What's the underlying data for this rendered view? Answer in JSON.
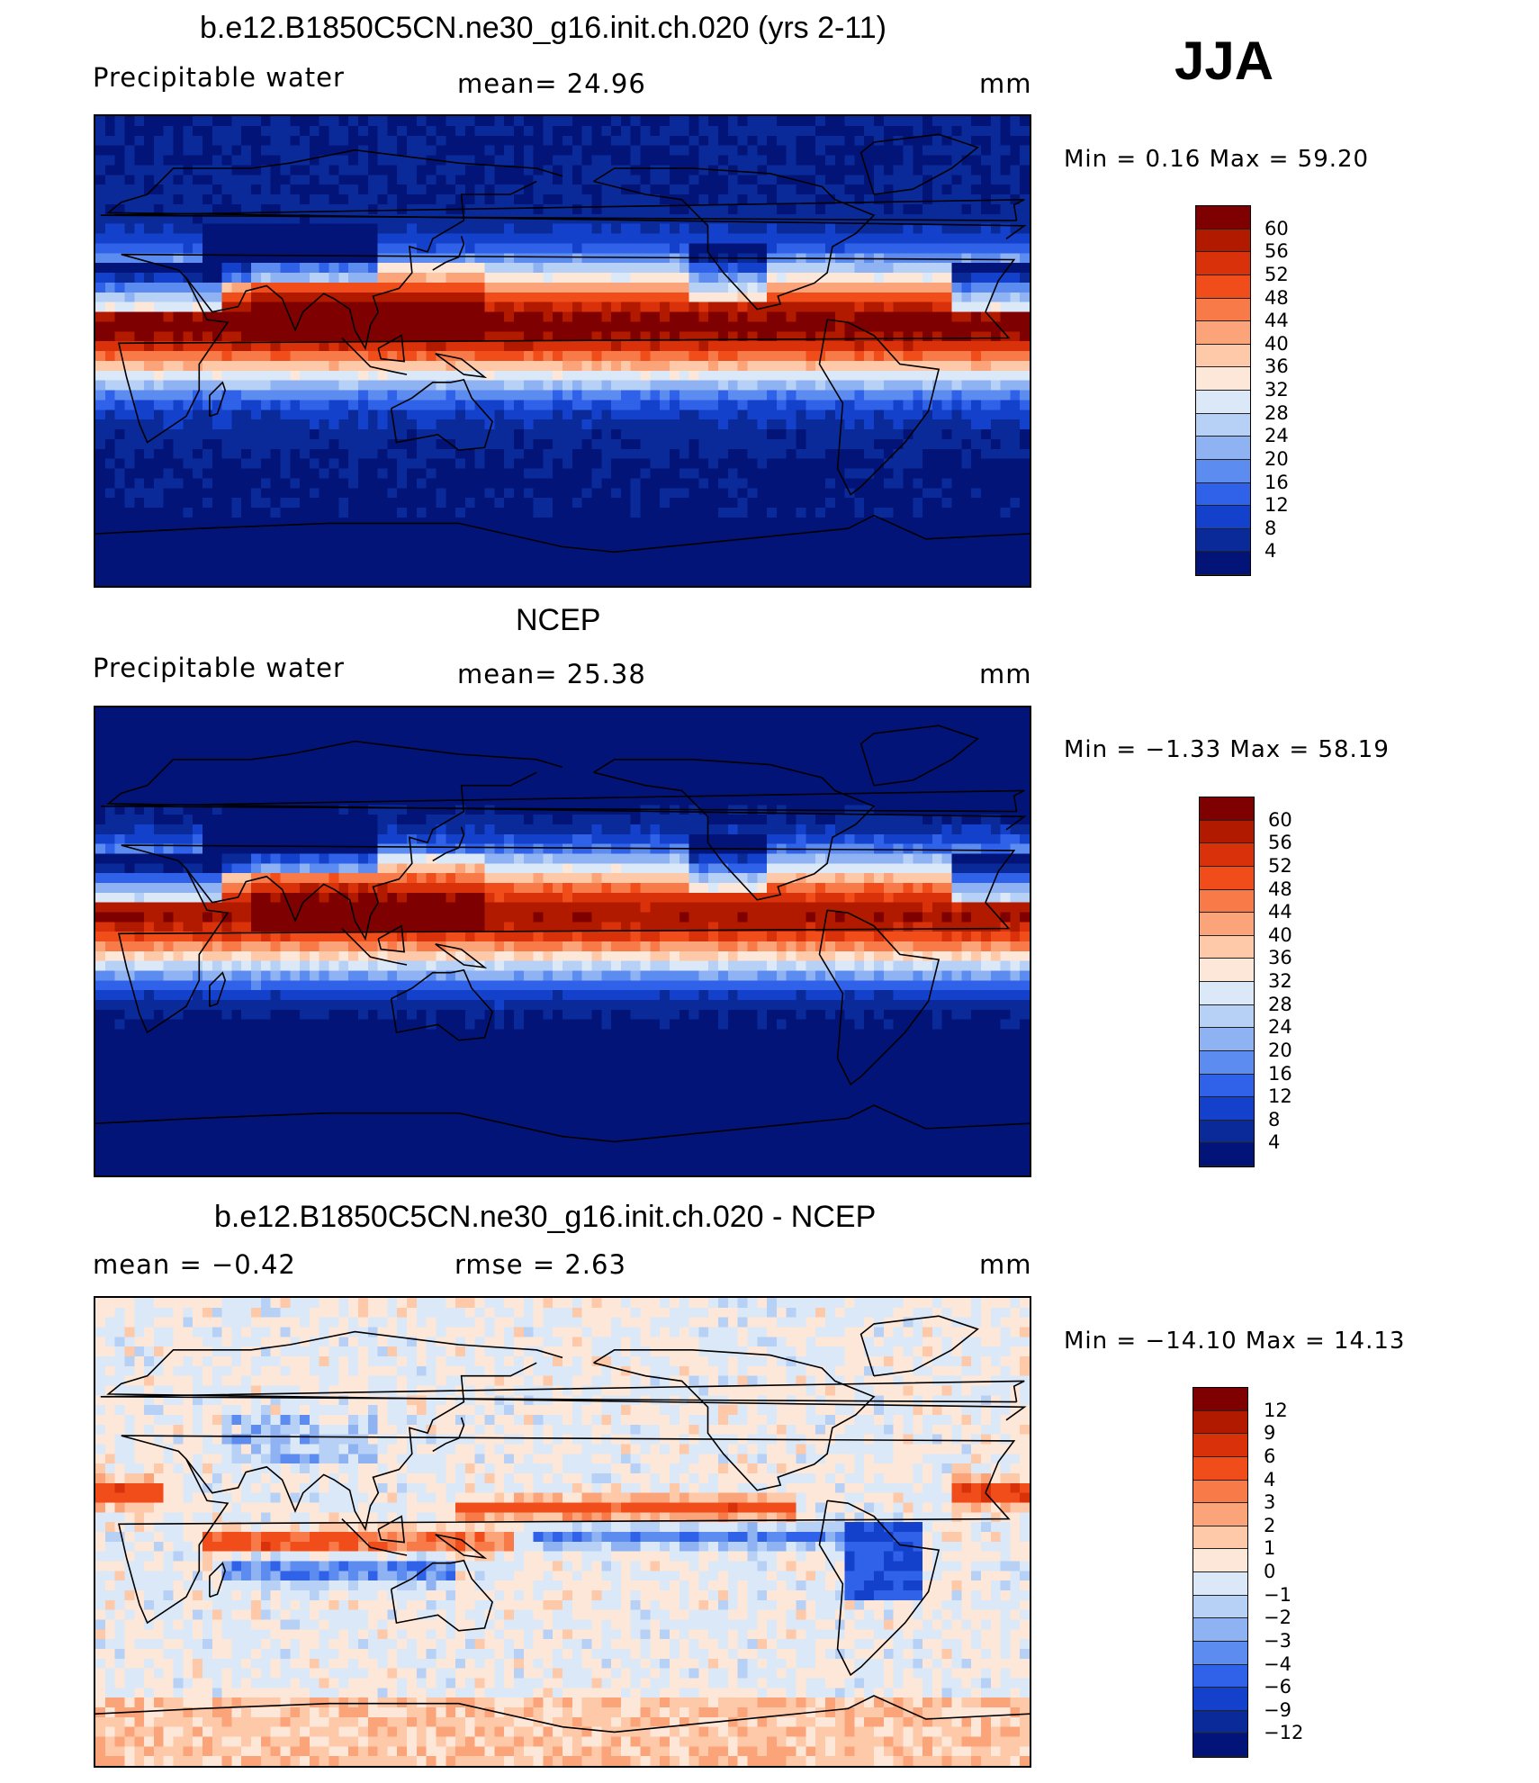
{
  "season": "JJA",
  "panels": [
    {
      "title": "b.e12.B1850C5CN.ne30_g16.init.ch.020 (yrs 2-11)",
      "left_label": "Precipitable  water",
      "center_label": "mean=   24.96",
      "units": "mm",
      "minmax": "Min  =     0.16  Max  =    59.20",
      "field": "model",
      "colorbar": {
        "labels": [
          "60",
          "56",
          "52",
          "48",
          "44",
          "40",
          "36",
          "32",
          "28",
          "24",
          "20",
          "16",
          "12",
          "8",
          "4"
        ],
        "colors": [
          "#7f0000",
          "#b21a00",
          "#d9320a",
          "#f04d1a",
          "#f87a48",
          "#fba47a",
          "#fdc9a8",
          "#fde7d8",
          "#dbe8f8",
          "#b7d0f5",
          "#8fb2f2",
          "#5c8cef",
          "#2f62e8",
          "#1441cc",
          "#0a2a9a",
          "#021478"
        ]
      }
    },
    {
      "title": "NCEP",
      "left_label": "Precipitable  water",
      "center_label": "mean=   25.38",
      "units": "mm",
      "minmax": "Min  =    −1.33  Max  =    58.19",
      "field": "obs",
      "colorbar": {
        "labels": [
          "60",
          "56",
          "52",
          "48",
          "44",
          "40",
          "36",
          "32",
          "28",
          "24",
          "20",
          "16",
          "12",
          "8",
          "4"
        ],
        "colors": [
          "#7f0000",
          "#b21a00",
          "#d9320a",
          "#f04d1a",
          "#f87a48",
          "#fba47a",
          "#fdc9a8",
          "#fde7d8",
          "#dbe8f8",
          "#b7d0f5",
          "#8fb2f2",
          "#5c8cef",
          "#2f62e8",
          "#1441cc",
          "#0a2a9a",
          "#021478"
        ]
      }
    },
    {
      "title": "b.e12.B1850C5CN.ne30_g16.init.ch.020 - NCEP",
      "left_label": "mean  =    −0.42",
      "center_label": "rmse  =     2.63",
      "units": "mm",
      "minmax": "Min  =  −14.10  Max  =    14.13",
      "field": "diff",
      "colorbar": {
        "labels": [
          "12",
          "9",
          "6",
          "4",
          "3",
          "2",
          "1",
          "0",
          "−1",
          "−2",
          "−3",
          "−4",
          "−6",
          "−9",
          "−12"
        ],
        "colors": [
          "#7f0000",
          "#b21a00",
          "#d9320a",
          "#f04d1a",
          "#f87a48",
          "#fba47a",
          "#fdc9a8",
          "#fde7d8",
          "#dbe8f8",
          "#b7d0f5",
          "#8fb2f2",
          "#5c8cef",
          "#2f62e8",
          "#1441cc",
          "#0a2a9a",
          "#021478"
        ]
      }
    }
  ]
}
